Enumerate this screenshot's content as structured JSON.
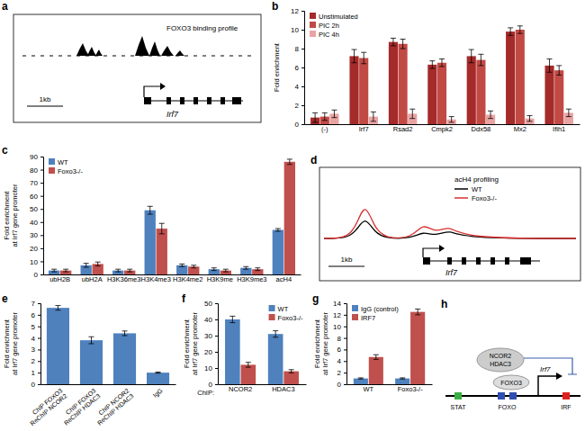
{
  "chart_data": [
    {
      "type": "bar",
      "panel": "b",
      "ylabel": [
        "Fold enrichment"
      ],
      "categories": [
        "(-)",
        "Irf7",
        "Rsad2",
        "Cmpk2",
        "Ddx58",
        "Mx2",
        "Ifih1"
      ],
      "series": [
        {
          "name": "Unstimulated",
          "color": "#a52a2a",
          "values": [
            0.7,
            7.2,
            8.7,
            6.3,
            7.2,
            9.8,
            6.2
          ],
          "errors": [
            0.5,
            0.7,
            0.4,
            0.4,
            0.7,
            0.4,
            0.7
          ]
        },
        {
          "name": "PIC 2h",
          "color": "#c24a45",
          "values": [
            0.8,
            7.0,
            8.5,
            6.5,
            6.8,
            10.0,
            5.7
          ],
          "errors": [
            0.4,
            0.6,
            0.5,
            0.4,
            0.6,
            0.4,
            0.5
          ]
        },
        {
          "name": "PIC 4h",
          "color": "#eaa3a3",
          "values": [
            1.1,
            0.8,
            1.1,
            0.5,
            1.0,
            0.6,
            1.2
          ],
          "errors": [
            0.4,
            0.5,
            0.5,
            0.3,
            0.4,
            0.3,
            0.4
          ]
        }
      ],
      "ylim": [
        0,
        12
      ],
      "yticks": [
        0,
        2,
        4,
        6,
        8,
        10,
        12
      ],
      "grid": false,
      "legend": "top-left"
    },
    {
      "type": "bar",
      "panel": "c",
      "ylabel": [
        "Fold enrichment",
        "at Irf7 gene promoter"
      ],
      "categories": [
        "ubH2B",
        "ubH2A",
        "H3K36me3",
        "H3K4me3",
        "H3K4me2",
        "H3K9me",
        "H3K9me3",
        "acH4"
      ],
      "series": [
        {
          "name": "WT",
          "color": "#4f81bd",
          "values": [
            3,
            7,
            3,
            49,
            7,
            4,
            5,
            34
          ],
          "errors": [
            1,
            1.5,
            1,
            3,
            1,
            1,
            1,
            1
          ]
        },
        {
          "name": "Foxo3-/-",
          "color": "#c0504d",
          "values": [
            3,
            8,
            3,
            35,
            6,
            3,
            4,
            86
          ],
          "errors": [
            1,
            1.5,
            1,
            4,
            1,
            1,
            1,
            2
          ]
        }
      ],
      "ylim": [
        0,
        90
      ],
      "yticks": [
        0,
        10,
        20,
        30,
        40,
        50,
        60,
        70,
        80,
        90
      ],
      "grid": false,
      "legend": "top-left"
    },
    {
      "type": "bar",
      "panel": "e",
      "ylabel": [
        "Fold enrichment",
        "at Irf7 gene promoter"
      ],
      "categories": [
        [
          "ChIP FOXO3",
          "ReChIP NCOR2"
        ],
        [
          "ChIP FOXO3",
          "ReChIP HDAC3"
        ],
        [
          "ChIP NCOR2",
          "ReChIP HDAC3"
        ],
        "IgG"
      ],
      "values": [
        6.6,
        3.8,
        4.4,
        1.0
      ],
      "errors": [
        0.2,
        0.3,
        0.2,
        0.05
      ],
      "color": "#4f81bd",
      "ylim": [
        0,
        7
      ],
      "yticks": [
        0,
        1,
        2,
        3,
        4,
        5,
        6,
        7
      ],
      "grid": false
    },
    {
      "type": "bar",
      "panel": "f",
      "ylabel": [
        "Fold enrichment",
        "at Irf7 gene promoter"
      ],
      "xlabel": "ChIP:",
      "categories": [
        "NCOR2",
        "HDAC3"
      ],
      "series": [
        {
          "name": "WT",
          "color": "#4f81bd",
          "values": [
            40,
            31
          ],
          "errors": [
            2,
            2
          ]
        },
        {
          "name": "Foxo3-/-",
          "color": "#c0504d",
          "values": [
            12,
            8
          ],
          "errors": [
            1.5,
            1
          ]
        }
      ],
      "ylim": [
        0,
        50
      ],
      "yticks": [
        0,
        10,
        20,
        30,
        40,
        50
      ],
      "grid": false,
      "legend": "top-right"
    },
    {
      "type": "bar",
      "panel": "g",
      "ylabel": [
        "Fold enrichment",
        "at Irf7 gene promoter"
      ],
      "categories": [
        "WT",
        "Foxo3-/-"
      ],
      "series": [
        {
          "name": "IgG (control)",
          "color": "#4f81bd",
          "values": [
            1,
            1
          ],
          "errors": [
            0.1,
            0.1
          ]
        },
        {
          "name": "IRF7",
          "color": "#c0504d",
          "values": [
            4.7,
            12.5
          ],
          "errors": [
            0.4,
            0.5
          ]
        }
      ],
      "ylim": [
        0,
        14
      ],
      "yticks": [
        0,
        2,
        4,
        6,
        8,
        10,
        12,
        14
      ],
      "grid": false,
      "legend": "top-left"
    }
  ],
  "diagrams": {
    "a": {
      "panel": "a",
      "track_label": "FOXO3 binding profile",
      "gene": "Irf7",
      "scale": "1kb"
    },
    "d": {
      "panel": "d",
      "title": "acH4 profiling",
      "gene": "Irf7",
      "scale": "1kb",
      "series": [
        {
          "name": "WT",
          "color": "#000000"
        },
        {
          "name": "Foxo3-/-",
          "color": "#d83030"
        }
      ]
    },
    "h": {
      "panel": "h",
      "complex": [
        "NCOR2",
        "HDAC3"
      ],
      "factor": "FOXO3",
      "gene": "Irf7",
      "sites": [
        {
          "label": "STAT",
          "color": "#3cb043"
        },
        {
          "label": "FOXO",
          "color": "#2f4fb0"
        },
        {
          "label": "IRF",
          "color": "#e02020"
        }
      ]
    }
  }
}
